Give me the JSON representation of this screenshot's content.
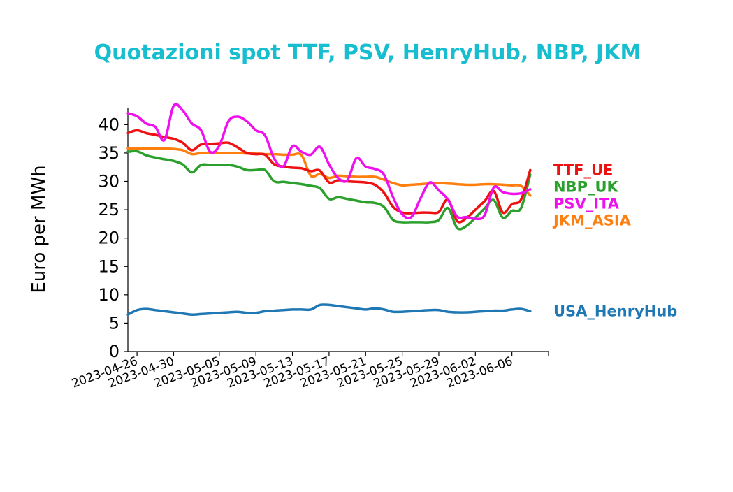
{
  "chart_data": {
    "type": "line",
    "title": "Quotazioni spot TTF, PSV, HenryHub, NBP, JKM",
    "title_color": "#17becf",
    "xlabel": "",
    "ylabel": "Euro per MWh",
    "ylim": [
      0,
      43
    ],
    "yticks": [
      0,
      5,
      10,
      15,
      20,
      25,
      30,
      35,
      40
    ],
    "xlim": [
      "2023-04-25",
      "2023-06-10"
    ],
    "xticks": [
      "2023-04-26",
      "2023-04-30",
      "2023-05-05",
      "2023-05-09",
      "2023-05-13",
      "2023-05-17",
      "2023-05-21",
      "2023-05-25",
      "2023-05-29",
      "2023-06-02",
      "2023-06-06"
    ],
    "grid": false,
    "legend": "right, labels beside series",
    "series": [
      {
        "name": "TTF_UE",
        "color": "#ee1111",
        "points": [
          [
            "2023-04-25",
            38.5
          ],
          [
            "2023-04-26",
            39.0
          ],
          [
            "2023-04-27",
            38.5
          ],
          [
            "2023-04-28",
            38.2
          ],
          [
            "2023-04-29",
            37.8
          ],
          [
            "2023-04-30",
            37.5
          ],
          [
            "2023-05-01",
            36.8
          ],
          [
            "2023-05-02",
            35.5
          ],
          [
            "2023-05-03",
            36.5
          ],
          [
            "2023-05-04",
            36.6
          ],
          [
            "2023-05-05",
            36.7
          ],
          [
            "2023-05-06",
            36.8
          ],
          [
            "2023-05-07",
            36.0
          ],
          [
            "2023-05-08",
            35.0
          ],
          [
            "2023-05-09",
            34.8
          ],
          [
            "2023-05-10",
            34.7
          ],
          [
            "2023-05-11",
            33.0
          ],
          [
            "2023-05-12",
            32.6
          ],
          [
            "2023-05-13",
            32.4
          ],
          [
            "2023-05-14",
            32.3
          ],
          [
            "2023-05-15",
            31.8
          ],
          [
            "2023-05-16",
            31.9
          ],
          [
            "2023-05-17",
            29.8
          ],
          [
            "2023-05-18",
            30.2
          ],
          [
            "2023-05-19",
            30.0
          ],
          [
            "2023-05-20",
            29.9
          ],
          [
            "2023-05-21",
            29.8
          ],
          [
            "2023-05-22",
            29.4
          ],
          [
            "2023-05-23",
            28.0
          ],
          [
            "2023-05-24",
            25.5
          ],
          [
            "2023-05-25",
            24.5
          ],
          [
            "2023-05-26",
            24.4
          ],
          [
            "2023-05-27",
            24.5
          ],
          [
            "2023-05-28",
            24.5
          ],
          [
            "2023-05-29",
            24.6
          ],
          [
            "2023-05-30",
            26.8
          ],
          [
            "2023-05-31",
            23.0
          ],
          [
            "2023-06-01",
            23.5
          ],
          [
            "2023-06-02",
            25.0
          ],
          [
            "2023-06-03",
            26.5
          ],
          [
            "2023-06-04",
            28.3
          ],
          [
            "2023-06-05",
            24.5
          ],
          [
            "2023-06-06",
            26.0
          ],
          [
            "2023-06-07",
            26.8
          ],
          [
            "2023-06-08",
            32.0
          ]
        ]
      },
      {
        "name": "NBP_UK",
        "color": "#2ca02c",
        "points": [
          [
            "2023-04-25",
            35.2
          ],
          [
            "2023-04-26",
            35.3
          ],
          [
            "2023-04-27",
            34.6
          ],
          [
            "2023-04-28",
            34.2
          ],
          [
            "2023-04-29",
            33.9
          ],
          [
            "2023-04-30",
            33.6
          ],
          [
            "2023-05-01",
            33.0
          ],
          [
            "2023-05-02",
            31.6
          ],
          [
            "2023-05-03",
            32.9
          ],
          [
            "2023-05-04",
            32.9
          ],
          [
            "2023-05-05",
            32.9
          ],
          [
            "2023-05-06",
            32.9
          ],
          [
            "2023-05-07",
            32.6
          ],
          [
            "2023-05-08",
            32.0
          ],
          [
            "2023-05-09",
            32.0
          ],
          [
            "2023-05-10",
            32.0
          ],
          [
            "2023-05-11",
            30.0
          ],
          [
            "2023-05-12",
            29.9
          ],
          [
            "2023-05-13",
            29.7
          ],
          [
            "2023-05-14",
            29.5
          ],
          [
            "2023-05-15",
            29.2
          ],
          [
            "2023-05-16",
            28.8
          ],
          [
            "2023-05-17",
            26.9
          ],
          [
            "2023-05-18",
            27.2
          ],
          [
            "2023-05-19",
            26.9
          ],
          [
            "2023-05-20",
            26.6
          ],
          [
            "2023-05-21",
            26.3
          ],
          [
            "2023-05-22",
            26.2
          ],
          [
            "2023-05-23",
            25.5
          ],
          [
            "2023-05-24",
            23.2
          ],
          [
            "2023-05-25",
            22.8
          ],
          [
            "2023-05-26",
            22.8
          ],
          [
            "2023-05-27",
            22.8
          ],
          [
            "2023-05-28",
            22.8
          ],
          [
            "2023-05-29",
            23.2
          ],
          [
            "2023-05-30",
            25.3
          ],
          [
            "2023-05-31",
            21.8
          ],
          [
            "2023-06-01",
            22.1
          ],
          [
            "2023-06-02",
            23.6
          ],
          [
            "2023-06-03",
            25.2
          ],
          [
            "2023-06-04",
            26.7
          ],
          [
            "2023-06-05",
            23.6
          ],
          [
            "2023-06-06",
            24.8
          ],
          [
            "2023-06-07",
            25.3
          ],
          [
            "2023-06-08",
            31.2
          ]
        ]
      },
      {
        "name": "JKM_ASIA",
        "color": "#ff7f0e",
        "points": [
          [
            "2023-04-25",
            35.8
          ],
          [
            "2023-04-26",
            35.8
          ],
          [
            "2023-04-27",
            35.8
          ],
          [
            "2023-04-28",
            35.8
          ],
          [
            "2023-04-29",
            35.8
          ],
          [
            "2023-04-30",
            35.7
          ],
          [
            "2023-05-01",
            35.5
          ],
          [
            "2023-05-02",
            34.8
          ],
          [
            "2023-05-03",
            35.0
          ],
          [
            "2023-05-04",
            35.0
          ],
          [
            "2023-05-05",
            35.0
          ],
          [
            "2023-05-06",
            35.0
          ],
          [
            "2023-05-07",
            35.0
          ],
          [
            "2023-05-08",
            34.9
          ],
          [
            "2023-05-09",
            34.9
          ],
          [
            "2023-05-10",
            34.8
          ],
          [
            "2023-05-11",
            34.8
          ],
          [
            "2023-05-12",
            34.7
          ],
          [
            "2023-05-13",
            34.7
          ],
          [
            "2023-05-14",
            34.6
          ],
          [
            "2023-05-15",
            31.0
          ],
          [
            "2023-05-16",
            31.3
          ],
          [
            "2023-05-17",
            30.6
          ],
          [
            "2023-05-18",
            31.0
          ],
          [
            "2023-05-19",
            30.9
          ],
          [
            "2023-05-20",
            30.8
          ],
          [
            "2023-05-21",
            30.8
          ],
          [
            "2023-05-22",
            30.8
          ],
          [
            "2023-05-23",
            30.3
          ],
          [
            "2023-05-24",
            29.7
          ],
          [
            "2023-05-25",
            29.3
          ],
          [
            "2023-05-26",
            29.4
          ],
          [
            "2023-05-27",
            29.5
          ],
          [
            "2023-05-28",
            29.6
          ],
          [
            "2023-05-29",
            29.7
          ],
          [
            "2023-05-30",
            29.6
          ],
          [
            "2023-05-31",
            29.5
          ],
          [
            "2023-06-01",
            29.4
          ],
          [
            "2023-06-02",
            29.4
          ],
          [
            "2023-06-03",
            29.5
          ],
          [
            "2023-06-04",
            29.5
          ],
          [
            "2023-06-05",
            29.4
          ],
          [
            "2023-06-06",
            29.3
          ],
          [
            "2023-06-07",
            29.2
          ],
          [
            "2023-06-08",
            27.5
          ]
        ]
      },
      {
        "name": "PSV_ITA",
        "color": "#ee11ee",
        "points": [
          [
            "2023-04-25",
            42.0
          ],
          [
            "2023-04-26",
            41.5
          ],
          [
            "2023-04-27",
            40.2
          ],
          [
            "2023-04-28",
            39.6
          ],
          [
            "2023-04-29",
            37.3
          ],
          [
            "2023-04-30",
            43.3
          ],
          [
            "2023-05-01",
            42.5
          ],
          [
            "2023-05-02",
            40.2
          ],
          [
            "2023-05-03",
            39.0
          ],
          [
            "2023-05-04",
            35.2
          ],
          [
            "2023-05-05",
            36.3
          ],
          [
            "2023-05-06",
            40.6
          ],
          [
            "2023-05-07",
            41.4
          ],
          [
            "2023-05-08",
            40.6
          ],
          [
            "2023-05-09",
            39.0
          ],
          [
            "2023-05-10",
            38.1
          ],
          [
            "2023-05-11",
            34.0
          ],
          [
            "2023-05-12",
            32.6
          ],
          [
            "2023-05-13",
            36.2
          ],
          [
            "2023-05-14",
            35.2
          ],
          [
            "2023-05-15",
            34.7
          ],
          [
            "2023-05-16",
            36.1
          ],
          [
            "2023-05-17",
            33.0
          ],
          [
            "2023-05-18",
            30.6
          ],
          [
            "2023-05-19",
            30.2
          ],
          [
            "2023-05-20",
            34.1
          ],
          [
            "2023-05-21",
            32.6
          ],
          [
            "2023-05-22",
            32.2
          ],
          [
            "2023-05-23",
            31.2
          ],
          [
            "2023-05-24",
            27.2
          ],
          [
            "2023-05-25",
            24.2
          ],
          [
            "2023-05-26",
            23.7
          ],
          [
            "2023-05-27",
            27.0
          ],
          [
            "2023-05-28",
            29.8
          ],
          [
            "2023-05-29",
            28.4
          ],
          [
            "2023-05-30",
            26.8
          ],
          [
            "2023-05-31",
            23.8
          ],
          [
            "2023-06-01",
            23.7
          ],
          [
            "2023-06-02",
            23.4
          ],
          [
            "2023-06-03",
            24.0
          ],
          [
            "2023-06-04",
            28.9
          ],
          [
            "2023-06-05",
            28.1
          ],
          [
            "2023-06-06",
            27.8
          ],
          [
            "2023-06-07",
            27.9
          ],
          [
            "2023-06-08",
            28.6
          ]
        ]
      },
      {
        "name": "USA_HenryHub",
        "color": "#1f77b4",
        "points": [
          [
            "2023-04-25",
            6.5
          ],
          [
            "2023-04-26",
            7.3
          ],
          [
            "2023-04-27",
            7.5
          ],
          [
            "2023-04-28",
            7.3
          ],
          [
            "2023-04-29",
            7.1
          ],
          [
            "2023-04-30",
            6.9
          ],
          [
            "2023-05-01",
            6.7
          ],
          [
            "2023-05-02",
            6.5
          ],
          [
            "2023-05-03",
            6.6
          ],
          [
            "2023-05-04",
            6.7
          ],
          [
            "2023-05-05",
            6.8
          ],
          [
            "2023-05-06",
            6.9
          ],
          [
            "2023-05-07",
            7.0
          ],
          [
            "2023-05-08",
            6.8
          ],
          [
            "2023-05-09",
            6.8
          ],
          [
            "2023-05-10",
            7.1
          ],
          [
            "2023-05-11",
            7.2
          ],
          [
            "2023-05-12",
            7.3
          ],
          [
            "2023-05-13",
            7.4
          ],
          [
            "2023-05-14",
            7.4
          ],
          [
            "2023-05-15",
            7.4
          ],
          [
            "2023-05-16",
            8.2
          ],
          [
            "2023-05-17",
            8.2
          ],
          [
            "2023-05-18",
            8.0
          ],
          [
            "2023-05-19",
            7.8
          ],
          [
            "2023-05-20",
            7.6
          ],
          [
            "2023-05-21",
            7.4
          ],
          [
            "2023-05-22",
            7.6
          ],
          [
            "2023-05-23",
            7.4
          ],
          [
            "2023-05-24",
            7.0
          ],
          [
            "2023-05-25",
            7.0
          ],
          [
            "2023-05-26",
            7.1
          ],
          [
            "2023-05-27",
            7.2
          ],
          [
            "2023-05-28",
            7.3
          ],
          [
            "2023-05-29",
            7.3
          ],
          [
            "2023-05-30",
            7.0
          ],
          [
            "2023-05-31",
            6.9
          ],
          [
            "2023-06-01",
            6.9
          ],
          [
            "2023-06-02",
            7.0
          ],
          [
            "2023-06-03",
            7.1
          ],
          [
            "2023-06-04",
            7.2
          ],
          [
            "2023-06-05",
            7.2
          ],
          [
            "2023-06-06",
            7.4
          ],
          [
            "2023-06-07",
            7.5
          ],
          [
            "2023-06-08",
            7.1
          ]
        ]
      }
    ]
  }
}
